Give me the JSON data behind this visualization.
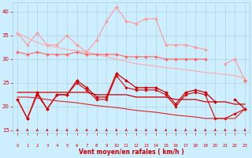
{
  "x": [
    0,
    1,
    2,
    3,
    4,
    5,
    6,
    7,
    8,
    9,
    10,
    11,
    12,
    13,
    14,
    15,
    16,
    17,
    18,
    19,
    20,
    21,
    22,
    23
  ],
  "series": [
    {
      "name": "rafales_max",
      "color": "#ff9999",
      "linewidth": 0.8,
      "marker": "D",
      "markersize": 2.0,
      "values": [
        35.5,
        33.0,
        35.5,
        33.0,
        33.0,
        35.0,
        33.0,
        31.5,
        34.0,
        38.0,
        41.0,
        38.0,
        37.5,
        38.5,
        38.5,
        33.0,
        33.0,
        33.0,
        32.5,
        32.0,
        null,
        29.0,
        30.0,
        25.5
      ]
    },
    {
      "name": "rafales_trend",
      "color": "#ffaaaa",
      "linewidth": 0.8,
      "marker": null,
      "markersize": 0,
      "values": [
        35.5,
        34.5,
        33.5,
        32.8,
        32.5,
        32.0,
        31.8,
        31.5,
        31.0,
        30.5,
        30.0,
        29.5,
        29.0,
        28.8,
        28.5,
        28.2,
        28.0,
        27.8,
        27.5,
        27.2,
        27.0,
        26.8,
        26.5,
        26.0
      ]
    },
    {
      "name": "moy_max",
      "color": "#ff6666",
      "linewidth": 0.8,
      "marker": "D",
      "markersize": 2.0,
      "values": [
        31.5,
        31.0,
        31.5,
        31.0,
        31.0,
        31.0,
        31.5,
        31.0,
        31.0,
        31.0,
        31.0,
        30.5,
        30.5,
        30.5,
        30.5,
        30.0,
        30.0,
        30.0,
        30.0,
        30.0,
        null,
        null,
        null,
        25.5
      ]
    },
    {
      "name": "vent_moy_series",
      "color": "#cc0000",
      "linewidth": 0.9,
      "marker": "D",
      "markersize": 2.0,
      "values": [
        21.5,
        17.5,
        23.0,
        19.5,
        22.5,
        22.5,
        25.5,
        24.0,
        22.0,
        22.0,
        27.0,
        25.5,
        24.0,
        24.0,
        24.0,
        23.0,
        20.5,
        23.0,
        23.5,
        23.0,
        21.0,
        null,
        21.5,
        19.5
      ]
    },
    {
      "name": "vent_moy_smooth",
      "color": "#cc0000",
      "linewidth": 0.9,
      "marker": null,
      "markersize": 0,
      "values": [
        23.0,
        23.0,
        23.0,
        23.0,
        23.0,
        23.0,
        23.0,
        23.0,
        22.5,
        22.5,
        22.5,
        22.5,
        22.0,
        22.0,
        22.0,
        22.0,
        21.5,
        21.5,
        21.5,
        21.0,
        21.0,
        21.0,
        20.5,
        20.5
      ]
    },
    {
      "name": "vent_min_series",
      "color": "#dd0000",
      "linewidth": 0.8,
      "marker": "D",
      "markersize": 1.8,
      "values": [
        21.5,
        17.5,
        22.5,
        19.5,
        22.5,
        22.5,
        25.0,
        23.5,
        21.5,
        21.5,
        26.5,
        24.0,
        23.5,
        23.5,
        23.5,
        22.5,
        20.0,
        22.5,
        23.0,
        22.5,
        17.5,
        17.5,
        18.5,
        19.5
      ]
    },
    {
      "name": "vent_trend",
      "color": "#dd2222",
      "linewidth": 0.8,
      "marker": null,
      "markersize": 0,
      "values": [
        22.0,
        22.0,
        21.8,
        21.5,
        21.2,
        21.0,
        20.8,
        20.5,
        20.2,
        20.0,
        19.8,
        19.5,
        19.2,
        19.0,
        18.8,
        18.5,
        18.2,
        18.0,
        17.8,
        17.5,
        17.5,
        17.5,
        17.5,
        19.5
      ]
    }
  ],
  "xlim": [
    -0.5,
    23.5
  ],
  "ylim": [
    14.5,
    42
  ],
  "yticks": [
    15,
    20,
    25,
    30,
    35,
    40
  ],
  "xticks": [
    0,
    1,
    2,
    3,
    4,
    5,
    6,
    7,
    8,
    9,
    10,
    11,
    12,
    13,
    14,
    15,
    16,
    17,
    18,
    19,
    20,
    21,
    22,
    23
  ],
  "xlabel": "Vent moyen/en rafales ( km/h )",
  "bg_color": "#cceeff",
  "grid_color": "#aaccdd",
  "tick_color": "#cc0000",
  "label_color": "#cc0000"
}
